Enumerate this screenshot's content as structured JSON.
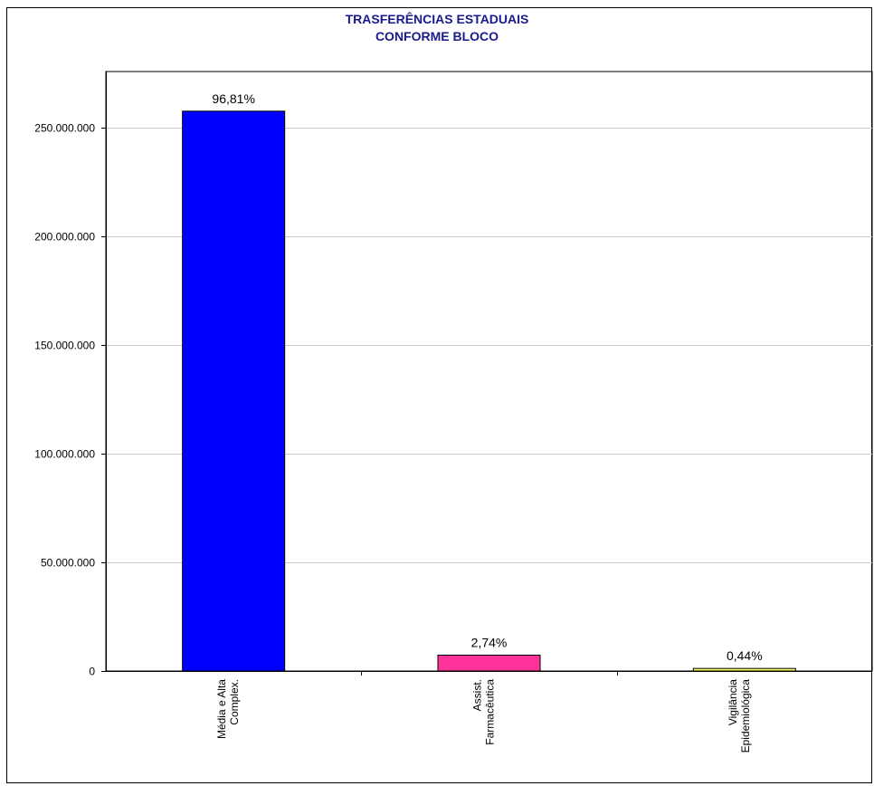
{
  "chart_data": {
    "type": "bar",
    "title": [
      "TRASFERÊNCIAS ESTADUAIS",
      "CONFORME BLOCO"
    ],
    "categories": [
      [
        "Média e Alta",
        "Complex."
      ],
      [
        "Assist.",
        "Farmacêutica"
      ],
      [
        "Vigilância",
        "Epidemiológica"
      ]
    ],
    "values": [
      257600000,
      7300000,
      1170000
    ],
    "data_labels": [
      "96,81%",
      "2,74%",
      "0,44%"
    ],
    "colors": [
      "#0000ff",
      "#ff3399",
      "#ffff66"
    ],
    "ylim": [
      0,
      250000000
    ],
    "yticks": [
      0,
      50000000,
      100000000,
      150000000,
      200000000,
      250000000
    ],
    "ytick_labels": [
      "0",
      "50.000.000",
      "100.000.000",
      "150.000.000",
      "200.000.000",
      "250.000.000"
    ],
    "grid": true,
    "legend": "none",
    "title_color": "#1a1a8c"
  }
}
